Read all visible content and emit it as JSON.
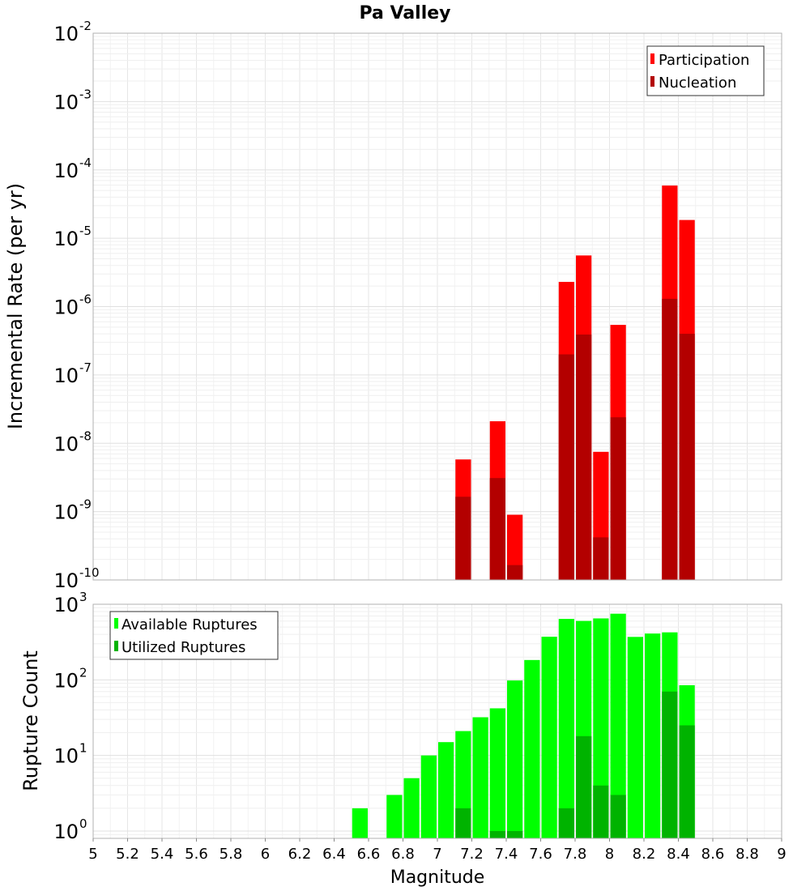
{
  "chart_data": [
    {
      "type": "bar",
      "title": "Pa Valley",
      "xlabel": "",
      "ylabel": "Incremental Rate (per yr)",
      "xlim": [
        5,
        9
      ],
      "ylim": [
        1e-10,
        0.01
      ],
      "yscale": "log",
      "y_tick_exponents": [
        -10,
        -9,
        -8,
        -7,
        -6,
        -5,
        -4,
        -3,
        -2
      ],
      "grid": true,
      "legend_position": "top-right",
      "bin_width": 0.1,
      "series": [
        {
          "name": "Participation",
          "color": "#ff0000",
          "points": [
            {
              "x": 7.15,
              "y": 5.8e-09
            },
            {
              "x": 7.35,
              "y": 2.1e-08
            },
            {
              "x": 7.45,
              "y": 9e-10
            },
            {
              "x": 7.75,
              "y": 2.3e-06
            },
            {
              "x": 7.85,
              "y": 5.6e-06
            },
            {
              "x": 7.95,
              "y": 7.5e-09
            },
            {
              "x": 8.05,
              "y": 5.4e-07
            },
            {
              "x": 8.35,
              "y": 5.9e-05
            },
            {
              "x": 8.45,
              "y": 1.85e-05
            }
          ]
        },
        {
          "name": "Nucleation",
          "color": "#b30000",
          "points": [
            {
              "x": 7.15,
              "y": 1.65e-09
            },
            {
              "x": 7.35,
              "y": 3.1e-09
            },
            {
              "x": 7.45,
              "y": 1.65e-10
            },
            {
              "x": 7.75,
              "y": 2e-07
            },
            {
              "x": 7.85,
              "y": 3.9e-07
            },
            {
              "x": 7.95,
              "y": 4.2e-10
            },
            {
              "x": 8.05,
              "y": 2.4e-08
            },
            {
              "x": 8.35,
              "y": 1.3e-06
            },
            {
              "x": 8.45,
              "y": 4e-07
            }
          ]
        }
      ]
    },
    {
      "type": "bar",
      "title": "",
      "xlabel": "Magnitude",
      "ylabel": "Rupture Count",
      "xlim": [
        5,
        9
      ],
      "ylim": [
        0.8,
        1000
      ],
      "yscale": "log",
      "y_tick_exponents": [
        0,
        1,
        2,
        3
      ],
      "x_ticks": [
        "5",
        "5.2",
        "5.4",
        "5.6",
        "5.8",
        "6",
        "6.2",
        "6.4",
        "6.6",
        "6.8",
        "7",
        "7.2",
        "7.4",
        "7.6",
        "7.8",
        "8",
        "8.2",
        "8.4",
        "8.6",
        "8.8",
        "9"
      ],
      "grid": true,
      "legend_position": "top-left",
      "bin_width": 0.1,
      "series": [
        {
          "name": "Available Ruptures",
          "color": "#00ff00",
          "points": [
            {
              "x": 6.55,
              "y": 2
            },
            {
              "x": 6.75,
              "y": 3
            },
            {
              "x": 6.85,
              "y": 5
            },
            {
              "x": 6.95,
              "y": 10
            },
            {
              "x": 7.05,
              "y": 15
            },
            {
              "x": 7.15,
              "y": 21
            },
            {
              "x": 7.25,
              "y": 32
            },
            {
              "x": 7.35,
              "y": 42
            },
            {
              "x": 7.45,
              "y": 98
            },
            {
              "x": 7.55,
              "y": 183
            },
            {
              "x": 7.65,
              "y": 372
            },
            {
              "x": 7.75,
              "y": 640
            },
            {
              "x": 7.85,
              "y": 602
            },
            {
              "x": 7.95,
              "y": 650
            },
            {
              "x": 8.05,
              "y": 750
            },
            {
              "x": 8.15,
              "y": 370
            },
            {
              "x": 8.25,
              "y": 410
            },
            {
              "x": 8.35,
              "y": 425
            },
            {
              "x": 8.45,
              "y": 85
            }
          ]
        },
        {
          "name": "Utilized Ruptures",
          "color": "#00b300",
          "points": [
            {
              "x": 7.15,
              "y": 2
            },
            {
              "x": 7.35,
              "y": 1
            },
            {
              "x": 7.45,
              "y": 1
            },
            {
              "x": 7.75,
              "y": 2
            },
            {
              "x": 7.85,
              "y": 18
            },
            {
              "x": 7.95,
              "y": 4
            },
            {
              "x": 8.05,
              "y": 3
            },
            {
              "x": 8.35,
              "y": 70
            },
            {
              "x": 8.45,
              "y": 25
            }
          ]
        }
      ]
    }
  ]
}
